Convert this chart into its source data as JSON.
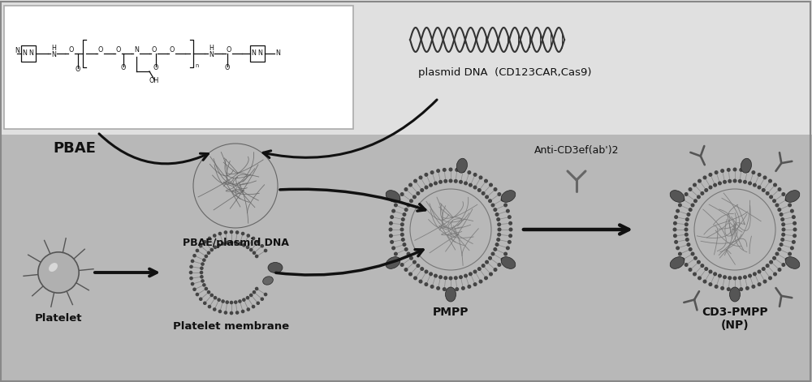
{
  "bg_top": "#e8e8e8",
  "bg_bottom": "#c0c0c0",
  "text_color": "#111111",
  "arrow_color": "#111111",
  "labels": {
    "pbae": "PBAE",
    "plasmid": "plasmid DNA  (CD123CAR,Cas9)",
    "pbae_plasmid": "PBAE/plasmid DNA",
    "platelet": "Platelet",
    "platelet_mem": "Platelet membrane",
    "pmpp": "PMPP",
    "anti": "Anti-CD3ef(ab')2",
    "cd3pmpp": "CD3-PMPP\n(NP)"
  },
  "figsize": [
    10.0,
    4.71
  ],
  "dpi": 100
}
